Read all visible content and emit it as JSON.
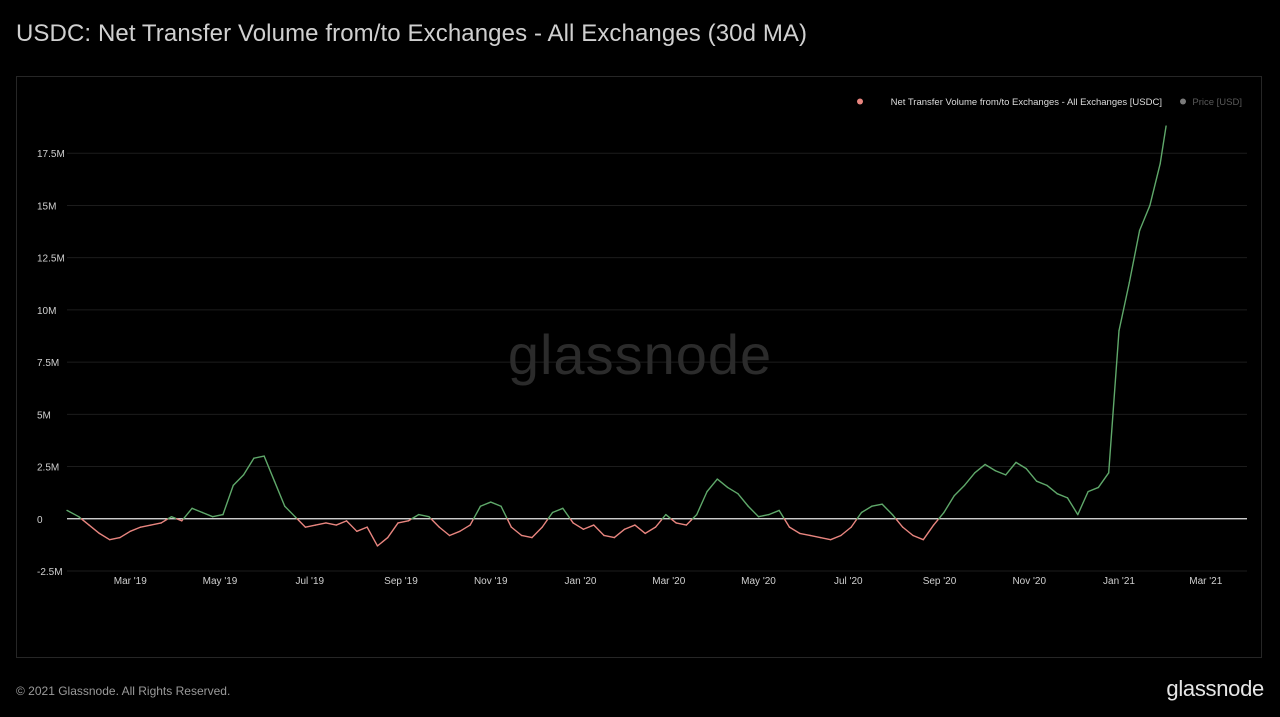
{
  "title": "USDC: Net Transfer Volume from/to Exchanges - All Exchanges (30d MA)",
  "footer": {
    "copyright": "© 2021 Glassnode. All Rights Reserved.",
    "brand": "glassnode"
  },
  "watermark": "glassnode",
  "colors": {
    "positive": "#5fa86a",
    "negative": "#e8857f",
    "zero_line": "#e8e8e8",
    "legend_series_dot": "#e8857f",
    "legend_price_dot": "#7a7a7a",
    "grid": "#1c1c1c"
  },
  "chart_data": {
    "type": "line",
    "title": "USDC: Net Transfer Volume from/to Exchanges - All Exchanges (30d MA)",
    "xlabel": "",
    "ylabel": "",
    "grid": true,
    "legend_position": "top-right",
    "legend": [
      {
        "name": "Net Transfer Volume from/to Exchanges - All Exchanges [USDC]",
        "active": true
      },
      {
        "name": "Price [USD]",
        "active": false
      }
    ],
    "ylim": [
      -2500000,
      20000000
    ],
    "y_ticks": [
      -2500000,
      0,
      2500000,
      5000000,
      7500000,
      10000000,
      12500000,
      15000000,
      17500000
    ],
    "y_tick_labels": [
      "-2.5M",
      "0",
      "2.5M",
      "5M",
      "7.5M",
      "10M",
      "12.5M",
      "15M",
      "17.5M"
    ],
    "xlim": [
      "2019-01-17",
      "2021-03-29"
    ],
    "x_ticks": [
      "2019-03-01",
      "2019-05-01",
      "2019-07-01",
      "2019-09-01",
      "2019-11-01",
      "2020-01-01",
      "2020-03-01",
      "2020-05-01",
      "2020-07-01",
      "2020-09-01",
      "2020-11-01",
      "2021-01-01",
      "2021-03-01"
    ],
    "x_tick_labels": [
      "Mar '19",
      "May '19",
      "Jul '19",
      "Sep '19",
      "Nov '19",
      "Jan '20",
      "Mar '20",
      "May '20",
      "Jul '20",
      "Sep '20",
      "Nov '20",
      "Jan '21",
      "Mar '21"
    ],
    "series": [
      {
        "name": "Net Transfer Volume from/to Exchanges - All Exchanges [USDC]",
        "color_positive": "#5fa86a",
        "color_negative": "#e8857f",
        "points": [
          [
            "2019-01-17",
            0.4
          ],
          [
            "2019-01-25",
            0.1
          ],
          [
            "2019-02-01",
            -0.3
          ],
          [
            "2019-02-08",
            -0.7
          ],
          [
            "2019-02-15",
            -1.0
          ],
          [
            "2019-02-22",
            -0.9
          ],
          [
            "2019-03-01",
            -0.6
          ],
          [
            "2019-03-08",
            -0.4
          ],
          [
            "2019-03-15",
            -0.3
          ],
          [
            "2019-03-22",
            -0.2
          ],
          [
            "2019-03-29",
            0.1
          ],
          [
            "2019-04-05",
            -0.1
          ],
          [
            "2019-04-12",
            0.5
          ],
          [
            "2019-04-19",
            0.3
          ],
          [
            "2019-04-26",
            0.1
          ],
          [
            "2019-05-03",
            0.2
          ],
          [
            "2019-05-10",
            1.6
          ],
          [
            "2019-05-17",
            2.1
          ],
          [
            "2019-05-24",
            2.9
          ],
          [
            "2019-05-31",
            3.0
          ],
          [
            "2019-06-07",
            1.8
          ],
          [
            "2019-06-14",
            0.6
          ],
          [
            "2019-06-21",
            0.1
          ],
          [
            "2019-06-28",
            -0.4
          ],
          [
            "2019-07-05",
            -0.3
          ],
          [
            "2019-07-12",
            -0.2
          ],
          [
            "2019-07-19",
            -0.3
          ],
          [
            "2019-07-26",
            -0.1
          ],
          [
            "2019-08-02",
            -0.6
          ],
          [
            "2019-08-09",
            -0.4
          ],
          [
            "2019-08-16",
            -1.3
          ],
          [
            "2019-08-23",
            -0.9
          ],
          [
            "2019-08-30",
            -0.2
          ],
          [
            "2019-09-06",
            -0.1
          ],
          [
            "2019-09-13",
            0.2
          ],
          [
            "2019-09-20",
            0.1
          ],
          [
            "2019-09-27",
            -0.4
          ],
          [
            "2019-10-04",
            -0.8
          ],
          [
            "2019-10-11",
            -0.6
          ],
          [
            "2019-10-18",
            -0.3
          ],
          [
            "2019-10-25",
            0.6
          ],
          [
            "2019-11-01",
            0.8
          ],
          [
            "2019-11-08",
            0.6
          ],
          [
            "2019-11-15",
            -0.4
          ],
          [
            "2019-11-22",
            -0.8
          ],
          [
            "2019-11-29",
            -0.9
          ],
          [
            "2019-12-06",
            -0.4
          ],
          [
            "2019-12-13",
            0.3
          ],
          [
            "2019-12-20",
            0.5
          ],
          [
            "2019-12-27",
            -0.2
          ],
          [
            "2020-01-03",
            -0.5
          ],
          [
            "2020-01-10",
            -0.3
          ],
          [
            "2020-01-17",
            -0.8
          ],
          [
            "2020-01-24",
            -0.9
          ],
          [
            "2020-01-31",
            -0.5
          ],
          [
            "2020-02-07",
            -0.3
          ],
          [
            "2020-02-14",
            -0.7
          ],
          [
            "2020-02-21",
            -0.4
          ],
          [
            "2020-02-28",
            0.2
          ],
          [
            "2020-03-06",
            -0.2
          ],
          [
            "2020-03-13",
            -0.3
          ],
          [
            "2020-03-20",
            0.2
          ],
          [
            "2020-03-27",
            1.3
          ],
          [
            "2020-04-03",
            1.9
          ],
          [
            "2020-04-10",
            1.5
          ],
          [
            "2020-04-17",
            1.2
          ],
          [
            "2020-04-24",
            0.6
          ],
          [
            "2020-05-01",
            0.1
          ],
          [
            "2020-05-08",
            0.2
          ],
          [
            "2020-05-15",
            0.4
          ],
          [
            "2020-05-22",
            -0.4
          ],
          [
            "2020-05-29",
            -0.7
          ],
          [
            "2020-06-05",
            -0.8
          ],
          [
            "2020-06-12",
            -0.9
          ],
          [
            "2020-06-19",
            -1.0
          ],
          [
            "2020-06-26",
            -0.8
          ],
          [
            "2020-07-03",
            -0.4
          ],
          [
            "2020-07-10",
            0.3
          ],
          [
            "2020-07-17",
            0.6
          ],
          [
            "2020-07-24",
            0.7
          ],
          [
            "2020-07-31",
            0.2
          ],
          [
            "2020-08-07",
            -0.4
          ],
          [
            "2020-08-14",
            -0.8
          ],
          [
            "2020-08-21",
            -1.0
          ],
          [
            "2020-08-28",
            -0.3
          ],
          [
            "2020-09-04",
            0.3
          ],
          [
            "2020-09-11",
            1.1
          ],
          [
            "2020-09-18",
            1.6
          ],
          [
            "2020-09-25",
            2.2
          ],
          [
            "2020-10-02",
            2.6
          ],
          [
            "2020-10-09",
            2.3
          ],
          [
            "2020-10-16",
            2.1
          ],
          [
            "2020-10-23",
            2.7
          ],
          [
            "2020-10-30",
            2.4
          ],
          [
            "2020-11-06",
            1.8
          ],
          [
            "2020-11-13",
            1.6
          ],
          [
            "2020-11-20",
            1.2
          ],
          [
            "2020-11-27",
            1.0
          ],
          [
            "2020-12-04",
            0.2
          ],
          [
            "2020-12-11",
            1.3
          ],
          [
            "2020-12-18",
            1.5
          ],
          [
            "2020-12-25",
            2.2
          ],
          [
            "2021-01-01",
            9.0
          ],
          [
            "2021-01-08",
            11.3
          ],
          [
            "2021-01-15",
            13.8
          ],
          [
            "2021-01-22",
            15.0
          ],
          [
            "2021-01-29",
            17.0
          ],
          [
            "2021-02-02",
            18.8
          ]
        ],
        "y_units": "millions"
      },
      {
        "name": "Price [USD]",
        "points": [],
        "visible": false
      }
    ]
  }
}
